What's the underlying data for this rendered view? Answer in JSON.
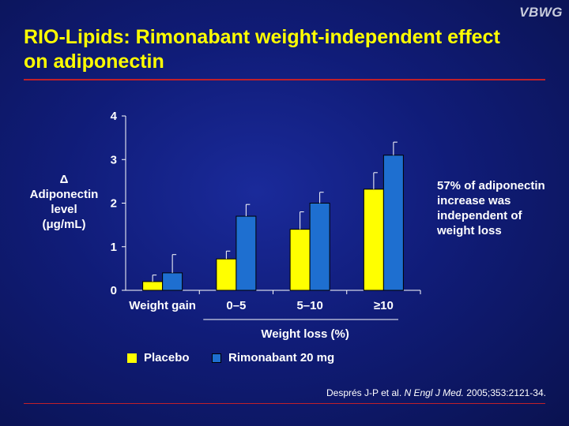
{
  "logo": "VBWG",
  "title": "RIO-Lipids: Rimonabant weight-independent effect on adiponectin",
  "ylabel_lines": [
    "Δ",
    "Adiponectin",
    "level",
    "(μg/mL)"
  ],
  "note": "57% of adiponectin increase was independent of weight loss",
  "legend": [
    {
      "label": "Placebo",
      "color": "#ffff00"
    },
    {
      "label": "Rimonabant 20 mg",
      "color": "#1e6fd0"
    }
  ],
  "citation": {
    "authors": "Després J-P et al.",
    "journal": "N Engl J Med.",
    "details": "2005;353:2121-34."
  },
  "colors": {
    "placebo": "#ffff00",
    "rimonabant": "#1e6fd0",
    "rule": "#c0202a",
    "title": "#ffff00"
  },
  "chart_data": {
    "type": "bar",
    "categories": [
      "Weight gain",
      "0–5",
      "5–10",
      "≥10"
    ],
    "group_label": "Weight loss (%)",
    "series": [
      {
        "name": "Placebo",
        "values": [
          0.2,
          0.72,
          1.4,
          2.32
        ],
        "errors": [
          0.15,
          0.18,
          0.4,
          0.38
        ]
      },
      {
        "name": "Rimonabant 20 mg",
        "values": [
          0.4,
          1.7,
          2.0,
          3.1
        ],
        "errors": [
          0.42,
          0.27,
          0.25,
          0.3
        ]
      }
    ],
    "yticks": [
      0,
      1,
      2,
      3,
      4
    ],
    "ylim": [
      0,
      4
    ],
    "ylabel": "Δ Adiponectin level (μg/mL)"
  }
}
